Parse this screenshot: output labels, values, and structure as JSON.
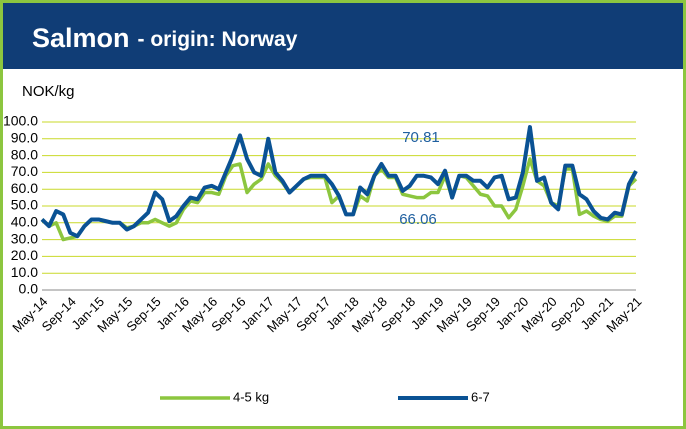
{
  "chart_data": {
    "type": "line",
    "title": "Salmon",
    "subtitle": "- origin: Norway",
    "y_label": "NOK/kg",
    "categories": [
      "May-14",
      null,
      null,
      null,
      "Sep-14",
      null,
      null,
      null,
      "Jan-15",
      null,
      null,
      null,
      "May-15",
      null,
      null,
      null,
      "Sep-15",
      null,
      null,
      null,
      "Jan-16",
      null,
      null,
      null,
      "May-16",
      null,
      null,
      null,
      "Sep-16",
      null,
      null,
      null,
      "Jan-17",
      null,
      null,
      null,
      "May-17",
      null,
      null,
      null,
      "Sep-17",
      null,
      null,
      null,
      "Jan-18",
      null,
      null,
      null,
      "May-18",
      null,
      null,
      null,
      "Sep-18",
      null,
      null,
      null,
      "Jan-19",
      null,
      null,
      null,
      "May-19",
      null,
      null,
      null,
      "Sep-19",
      null,
      null,
      null,
      "Jan-20",
      null,
      null,
      null,
      "May-20",
      null,
      null,
      null,
      "Sep-20",
      null,
      null,
      null,
      "Jan-21",
      null,
      null,
      null,
      "May-21"
    ],
    "series": [
      {
        "name": "4-5 kg",
        "color": "#8cc63f",
        "values": [
          42,
          38,
          40,
          30,
          31,
          32,
          38,
          42,
          42,
          41,
          40,
          40,
          37,
          38,
          40,
          40,
          42,
          40,
          38,
          40,
          48,
          53,
          52,
          58,
          58,
          57,
          68,
          74,
          75,
          58,
          63,
          66,
          75,
          68,
          64,
          58,
          62,
          66,
          67,
          67,
          67,
          52,
          56,
          45,
          45,
          56,
          53,
          68,
          72,
          67,
          67,
          57,
          56,
          55,
          55,
          58,
          58,
          68,
          55,
          68,
          67,
          62,
          57,
          56,
          50,
          50,
          43,
          48,
          62,
          78,
          65,
          62,
          52,
          50,
          72,
          72,
          45,
          47,
          44,
          42,
          41,
          44,
          44,
          62,
          66.06
        ]
      },
      {
        "name": "6-7",
        "color": "#0a5294",
        "values": [
          42,
          38,
          47,
          45,
          34,
          32,
          38,
          42,
          42,
          41,
          40,
          40,
          36,
          38,
          42,
          46,
          58,
          54,
          41,
          44,
          50,
          55,
          54,
          61,
          62,
          60,
          70,
          80,
          92,
          78,
          70,
          68,
          90,
          70,
          65,
          58,
          62,
          66,
          68,
          68,
          68,
          63,
          56,
          45,
          45,
          61,
          57,
          68,
          75,
          68,
          68,
          59,
          62,
          68,
          68,
          67,
          63,
          71,
          55,
          68,
          68,
          65,
          65,
          61,
          67,
          68,
          54,
          55,
          70,
          97,
          65,
          67,
          52,
          48,
          74,
          74,
          57,
          54,
          47,
          43,
          42,
          46,
          45,
          63,
          70.81
        ]
      }
    ],
    "annotations": [
      "70.81",
      "66.06"
    ],
    "ylim": [
      0,
      100
    ],
    "yticks": [
      {
        "value": 0,
        "label": "0.0"
      },
      {
        "value": 10,
        "label": "10.0"
      },
      {
        "value": 20,
        "label": "20.0"
      },
      {
        "value": 30,
        "label": "30.0"
      },
      {
        "value": 40,
        "label": "40.0"
      },
      {
        "value": 50,
        "label": "50.0"
      },
      {
        "value": 60,
        "label": "60.0"
      },
      {
        "value": 70,
        "label": "70.0"
      },
      {
        "value": 80,
        "label": "80.0"
      },
      {
        "value": 90,
        "label": "90.0"
      },
      {
        "value": 100,
        "label": "100.0"
      }
    ],
    "grid": true,
    "legend": "bottom"
  }
}
